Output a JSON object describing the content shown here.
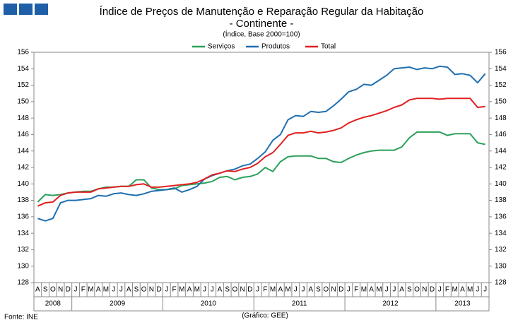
{
  "chart_data": {
    "type": "line",
    "title": "Índice de Preços de Manutenção e Reparação Regular da Habitação",
    "subtitle": "- Continente -",
    "unit_note": "(Índice, Base 2000=100)",
    "source": "Fonte: INE",
    "credit": "(Gráfico: GEE)",
    "categories": [
      "A",
      "S",
      "O",
      "N",
      "D",
      "J",
      "F",
      "M",
      "A",
      "M",
      "J",
      "J",
      "A",
      "S",
      "O",
      "N",
      "D",
      "J",
      "F",
      "M",
      "A",
      "M",
      "J",
      "J",
      "A",
      "S",
      "O",
      "N",
      "D",
      "J",
      "F",
      "M",
      "A",
      "M",
      "J",
      "J",
      "A",
      "S",
      "O",
      "N",
      "D",
      "J",
      "F",
      "M",
      "A",
      "M",
      "J",
      "J",
      "A",
      "S",
      "O",
      "N",
      "D",
      "J",
      "F",
      "M",
      "A",
      "M",
      "J",
      "J"
    ],
    "years": [
      "2008",
      "2009",
      "2010",
      "2011",
      "2012",
      "2013"
    ],
    "series": [
      {
        "name": "Serviços",
        "color": "#2ca05a",
        "values": [
          137.8,
          138.7,
          138.6,
          138.7,
          138.9,
          139.0,
          139.1,
          139.1,
          139.4,
          139.6,
          139.6,
          139.7,
          139.7,
          140.5,
          140.5,
          139.5,
          139.3,
          139.3,
          139.4,
          139.8,
          139.9,
          140.0,
          140.1,
          140.3,
          140.8,
          140.9,
          140.5,
          140.8,
          140.9,
          141.2,
          142.0,
          141.5,
          142.7,
          143.3,
          143.4,
          143.4,
          143.4,
          143.1,
          143.1,
          142.7,
          142.6,
          143.1,
          143.5,
          143.8,
          144.0,
          144.1,
          144.1,
          144.1,
          144.5,
          145.6,
          146.3,
          146.3,
          146.3,
          146.3,
          145.9,
          146.1,
          146.1,
          146.1,
          145.0,
          144.8
        ]
      },
      {
        "name": "Produtos",
        "color": "#1f6fb2",
        "values": [
          135.8,
          135.5,
          135.8,
          137.7,
          138.0,
          138.0,
          138.1,
          138.2,
          138.6,
          138.5,
          138.8,
          138.9,
          138.7,
          138.6,
          138.8,
          139.1,
          139.2,
          139.3,
          139.5,
          139.0,
          139.3,
          139.7,
          140.6,
          141.0,
          141.3,
          141.6,
          141.8,
          142.2,
          142.4,
          143.1,
          143.9,
          145.3,
          146.0,
          147.8,
          148.3,
          148.2,
          148.8,
          148.7,
          148.8,
          149.5,
          150.3,
          151.2,
          151.5,
          152.1,
          152.0,
          152.6,
          153.2,
          154.0,
          154.1,
          154.2,
          153.9,
          154.1,
          154.0,
          154.3,
          154.2,
          153.3,
          153.4,
          153.2,
          152.3,
          153.4
        ]
      },
      {
        "name": "Total",
        "color": "#e02020",
        "values": [
          137.3,
          137.7,
          137.8,
          138.6,
          138.9,
          139.0,
          139.0,
          139.0,
          139.4,
          139.5,
          139.6,
          139.7,
          139.7,
          139.9,
          140.0,
          139.6,
          139.6,
          139.7,
          139.8,
          139.9,
          140.0,
          140.2,
          140.6,
          141.1,
          141.3,
          141.6,
          141.5,
          141.8,
          142.0,
          142.5,
          143.3,
          143.8,
          144.8,
          145.9,
          146.2,
          146.2,
          146.4,
          146.2,
          146.3,
          146.5,
          146.8,
          147.4,
          147.8,
          148.1,
          148.3,
          148.6,
          148.9,
          149.3,
          149.6,
          150.2,
          150.4,
          150.4,
          150.4,
          150.3,
          150.4,
          150.4,
          150.4,
          150.4,
          149.3,
          149.4
        ]
      }
    ],
    "ylim": [
      128,
      156
    ],
    "yticks": [
      128,
      130,
      132,
      134,
      136,
      138,
      140,
      142,
      144,
      146,
      148,
      150,
      152,
      154,
      156
    ],
    "y2lim": [
      128,
      156
    ],
    "y2ticks": [
      128,
      130,
      132,
      134,
      136,
      138,
      140,
      142,
      144,
      146,
      148,
      150,
      152,
      154,
      156
    ],
    "grid": false,
    "legend": "top"
  }
}
